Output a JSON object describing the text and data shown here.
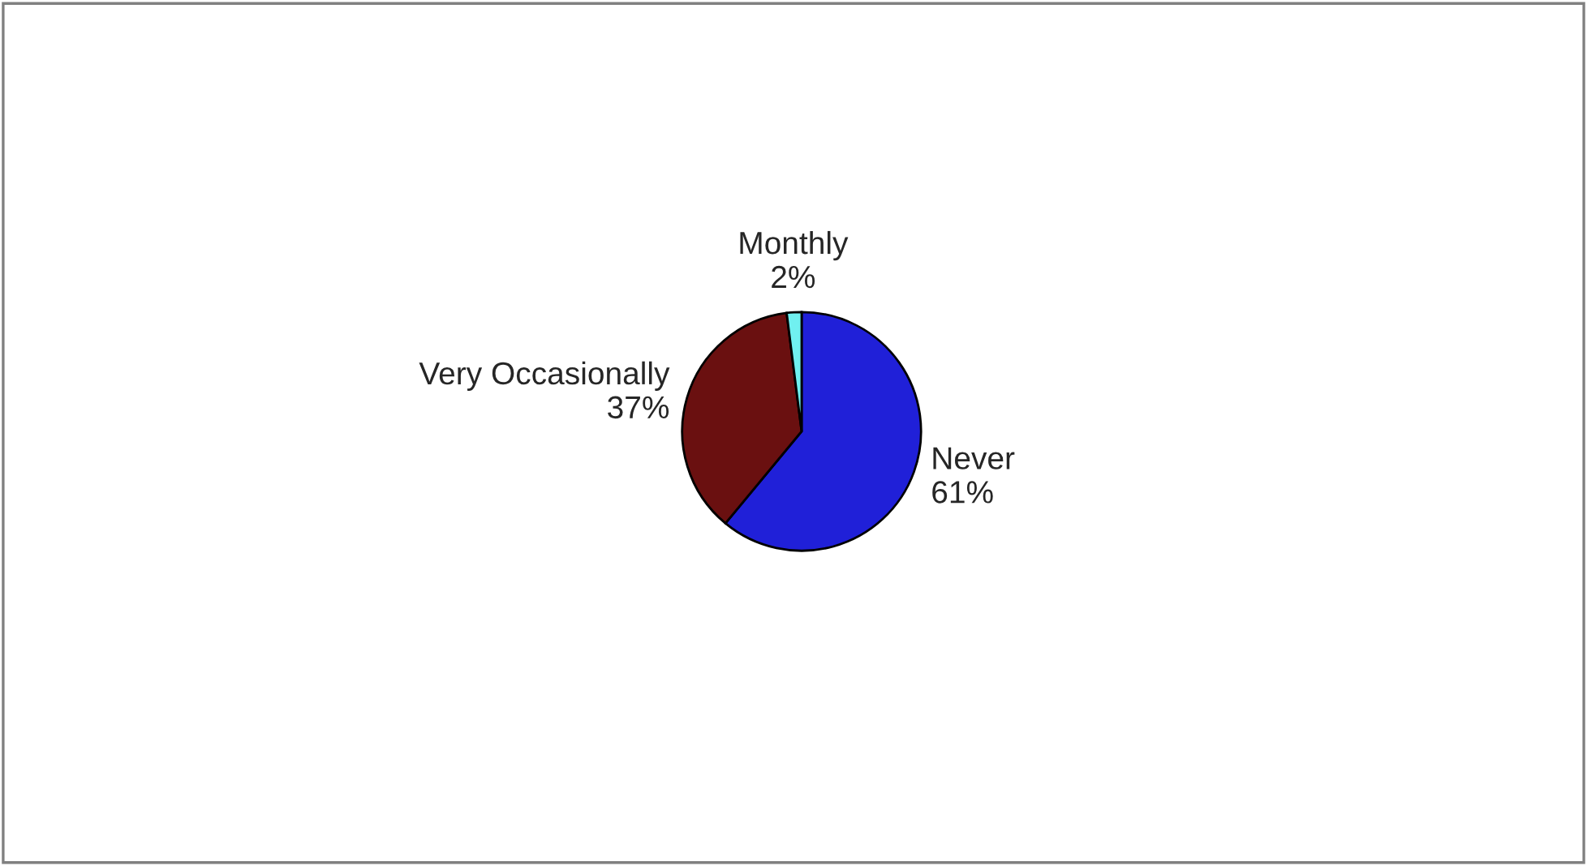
{
  "chart_data": {
    "type": "pie",
    "categories": [
      "Never",
      "Very Occasionally",
      "Monthly"
    ],
    "values": [
      61,
      37,
      2
    ],
    "value_labels": [
      "61%",
      "37%",
      "2%"
    ],
    "colors": [
      "#2020d8",
      "#6a1010",
      "#70f0f0"
    ],
    "legend": false
  }
}
